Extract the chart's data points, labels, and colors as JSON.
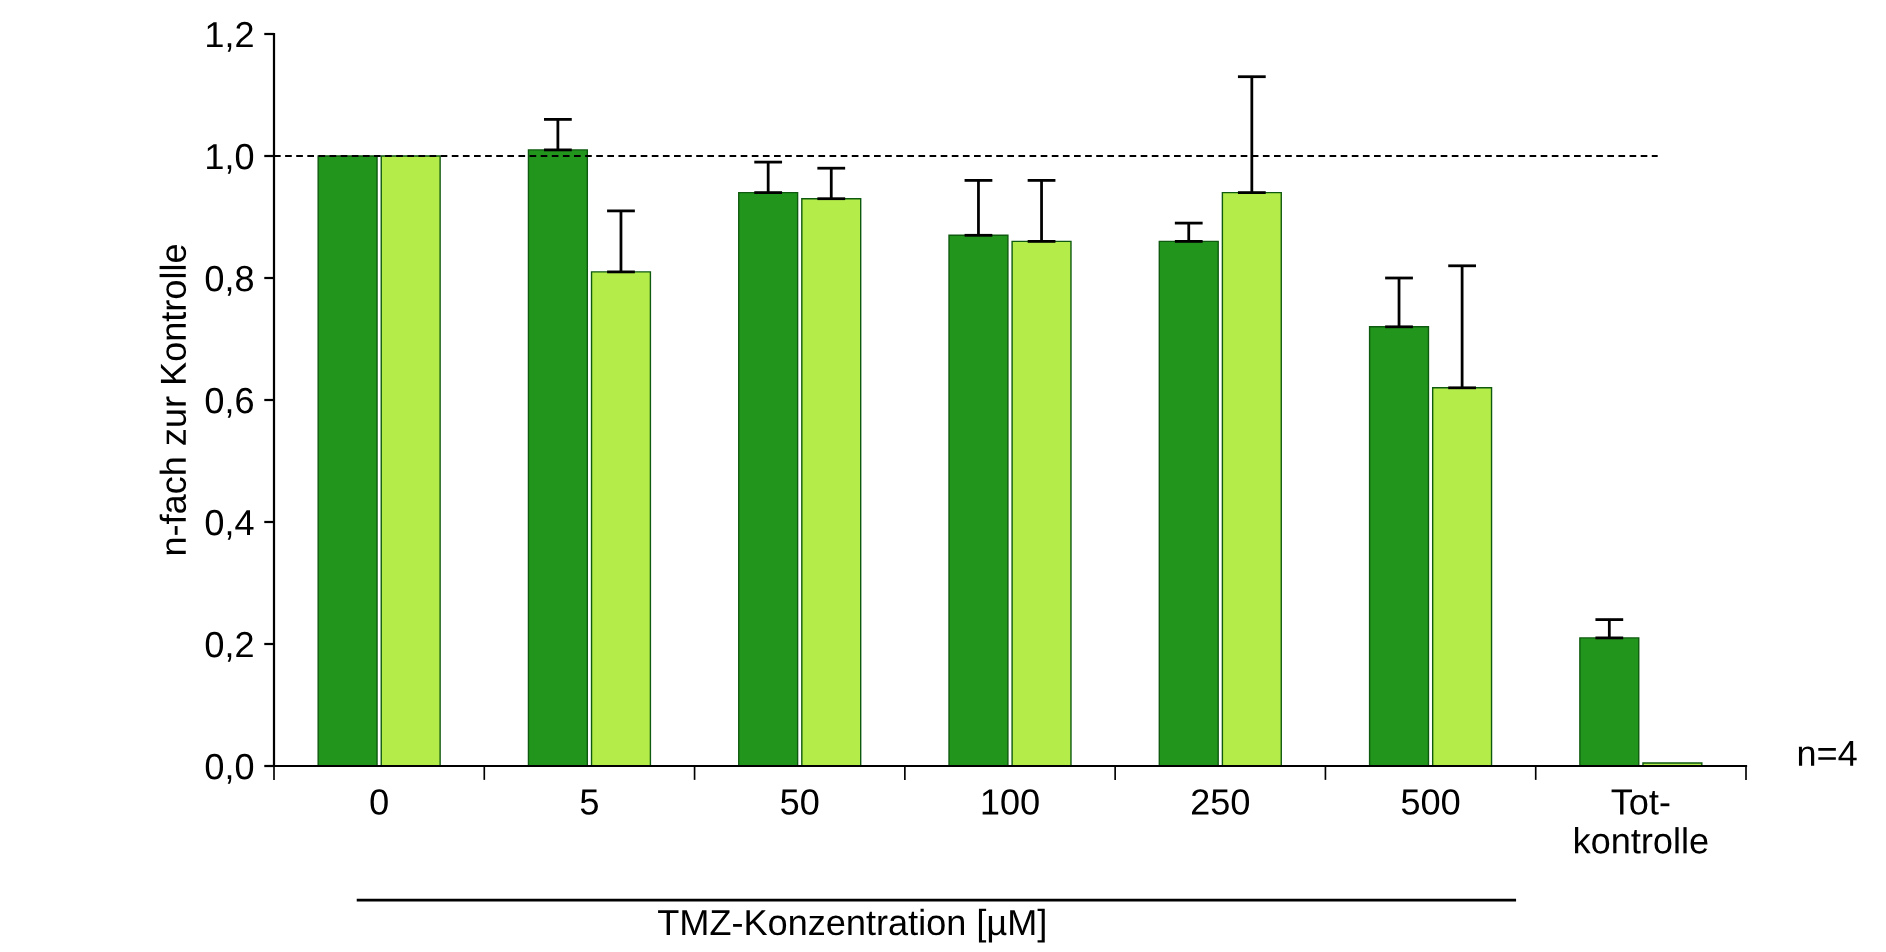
{
  "chart_data": {
    "type": "bar",
    "ylabel": "n-fach zur Kontrolle",
    "xlabel": "TMZ-Konzentration [µM]",
    "categories": [
      "0",
      "5",
      "50",
      "100",
      "250",
      "500",
      "Tot-\nkontrolle"
    ],
    "series": [
      {
        "color": "#22961c",
        "values": [
          1.0,
          1.01,
          0.94,
          0.87,
          0.86,
          0.72,
          0.21
        ],
        "errors": [
          null,
          [
            1.01,
            1.06
          ],
          [
            0.94,
            0.99
          ],
          [
            0.87,
            0.96
          ],
          [
            0.86,
            0.89
          ],
          [
            0.72,
            0.8
          ],
          [
            0.21,
            0.24
          ]
        ]
      },
      {
        "color": "#b4ec4a",
        "values": [
          1.0,
          0.81,
          0.93,
          0.86,
          0.94,
          0.62,
          0.005
        ],
        "errors": [
          null,
          [
            0.81,
            0.91
          ],
          [
            0.93,
            0.98
          ],
          [
            0.86,
            0.96
          ],
          [
            0.94,
            1.13
          ],
          [
            0.62,
            0.82
          ],
          null
        ]
      }
    ],
    "ylim": [
      0,
      1.2
    ],
    "yticks": [
      {
        "value": 0,
        "label": "0,0"
      },
      {
        "value": 0.2,
        "label": "0,2"
      },
      {
        "value": 0.4,
        "label": "0,4"
      },
      {
        "value": 0.6,
        "label": "0,6"
      },
      {
        "value": 0.8,
        "label": "0,8"
      },
      {
        "value": 1.0,
        "label": "1,0"
      },
      {
        "value": 1.2,
        "label": "1,2"
      }
    ],
    "ref_lines": [
      {
        "axis": "y",
        "value": 1.0,
        "label": null,
        "color": "#000000",
        "line_style": "dashed"
      }
    ],
    "annotations": [
      "n=4"
    ],
    "grid": false,
    "legend": false
  }
}
